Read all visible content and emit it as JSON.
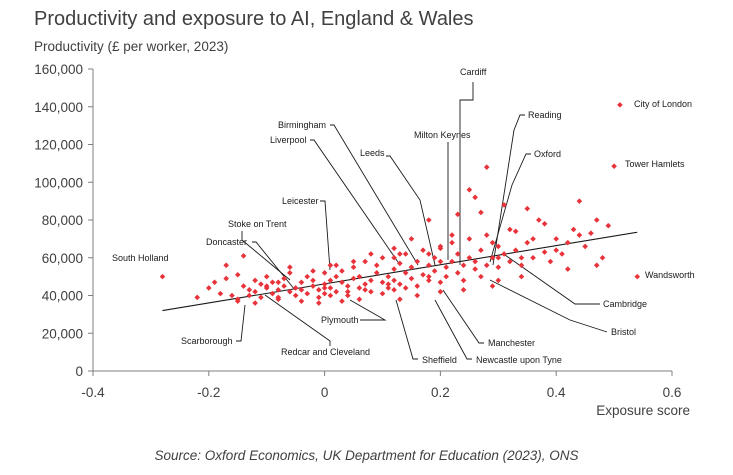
{
  "chart_data": {
    "type": "scatter",
    "title": "Productivity and exposure to AI, England & Wales",
    "ylabel": "Productivity (£ per worker, 2023)",
    "xlabel": "Exposure score",
    "source": "Source: Oxford Economics, UK Department for Education (2023), ONS",
    "xlim": [
      -0.4,
      0.6
    ],
    "ylim": [
      0,
      160000
    ],
    "x_ticks": [
      "-0.4",
      "-0.2",
      "0",
      "0.2",
      "0.4",
      "0.6"
    ],
    "y_ticks": [
      "0",
      "20,000",
      "40,000",
      "60,000",
      "80,000",
      "100,000",
      "120,000",
      "140,000",
      "160,000"
    ],
    "marker_color": "#e8333a",
    "trendline": {
      "x": [
        -0.28,
        0.54
      ],
      "y": [
        32000,
        73500
      ],
      "color": "#1a1a1a"
    },
    "labelled_points": [
      {
        "name": "City of London",
        "x": 0.51,
        "y": 141000
      },
      {
        "name": "Tower Hamlets",
        "x": 0.5,
        "y": 108500
      },
      {
        "name": "Wandsworth",
        "x": 0.54,
        "y": 50000
      },
      {
        "name": "South Holland",
        "x": -0.28,
        "y": 50000
      },
      {
        "name": "Cardiff",
        "x": 0.23,
        "y": 83000
      },
      {
        "name": "Reading",
        "x": 0.29,
        "y": 68000
      },
      {
        "name": "Oxford",
        "x": 0.3,
        "y": 60000
      },
      {
        "name": "Milton Keynes",
        "x": 0.2,
        "y": 66000
      },
      {
        "name": "Birmingham",
        "x": 0.13,
        "y": 62000
      },
      {
        "name": "Liverpool",
        "x": 0.12,
        "y": 60000
      },
      {
        "name": "Leeds",
        "x": 0.18,
        "y": 62000
      },
      {
        "name": "Leicester",
        "x": 0.01,
        "y": 56000
      },
      {
        "name": "Stoke on Trent",
        "x": -0.08,
        "y": 47000
      },
      {
        "name": "Doncaster",
        "x": -0.1,
        "y": 45000
      },
      {
        "name": "Scarborough",
        "x": -0.15,
        "y": 37000
      },
      {
        "name": "Redcar and Cleveland",
        "x": -0.12,
        "y": 36000
      },
      {
        "name": "Plymouth",
        "x": 0.01,
        "y": 40000
      },
      {
        "name": "Sheffield",
        "x": 0.12,
        "y": 43000
      },
      {
        "name": "Newcastle upon Tyne",
        "x": 0.18,
        "y": 50000
      },
      {
        "name": "Manchester",
        "x": 0.2,
        "y": 58000
      },
      {
        "name": "Cambridge",
        "x": 0.34,
        "y": 60000
      },
      {
        "name": "Bristol",
        "x": 0.3,
        "y": 48000
      }
    ],
    "points": [
      [
        -0.22,
        39000
      ],
      [
        -0.2,
        44000
      ],
      [
        -0.19,
        47000
      ],
      [
        -0.18,
        41000
      ],
      [
        -0.17,
        56000
      ],
      [
        -0.17,
        49000
      ],
      [
        -0.16,
        40000
      ],
      [
        -0.15,
        38000
      ],
      [
        -0.15,
        51000
      ],
      [
        -0.14,
        61000
      ],
      [
        -0.14,
        45000
      ],
      [
        -0.13,
        43000
      ],
      [
        -0.13,
        40000
      ],
      [
        -0.12,
        48000
      ],
      [
        -0.12,
        42000
      ],
      [
        -0.11,
        46000
      ],
      [
        -0.11,
        39000
      ],
      [
        -0.1,
        44000
      ],
      [
        -0.1,
        50000
      ],
      [
        -0.09,
        41000
      ],
      [
        -0.09,
        47000
      ],
      [
        -0.08,
        43000
      ],
      [
        -0.08,
        38000
      ],
      [
        -0.07,
        45000
      ],
      [
        -0.07,
        49000
      ],
      [
        -0.06,
        42000
      ],
      [
        -0.06,
        52000
      ],
      [
        -0.05,
        44000
      ],
      [
        -0.05,
        40000
      ],
      [
        -0.04,
        47000
      ],
      [
        -0.04,
        43000
      ],
      [
        -0.03,
        50000
      ],
      [
        -0.03,
        41000
      ],
      [
        -0.02,
        45000
      ],
      [
        -0.02,
        48000
      ],
      [
        -0.01,
        43000
      ],
      [
        -0.01,
        39000
      ],
      [
        0.0,
        46000
      ],
      [
        0.0,
        52000
      ],
      [
        0.0,
        41000
      ],
      [
        0.01,
        48000
      ],
      [
        0.01,
        44000
      ],
      [
        0.02,
        50000
      ],
      [
        0.02,
        42000
      ],
      [
        0.03,
        47000
      ],
      [
        0.03,
        53000
      ],
      [
        0.04,
        45000
      ],
      [
        0.04,
        40000
      ],
      [
        0.05,
        49000
      ],
      [
        0.05,
        55000
      ],
      [
        0.06,
        44000
      ],
      [
        0.06,
        50000
      ],
      [
        0.07,
        46000
      ],
      [
        0.07,
        58000
      ],
      [
        0.08,
        48000
      ],
      [
        0.08,
        42000
      ],
      [
        0.09,
        52000
      ],
      [
        0.09,
        56000
      ],
      [
        0.1,
        47000
      ],
      [
        0.1,
        60000
      ],
      [
        0.11,
        50000
      ],
      [
        0.11,
        44000
      ],
      [
        0.12,
        54000
      ],
      [
        0.12,
        48000
      ],
      [
        0.13,
        57000
      ],
      [
        0.13,
        46000
      ],
      [
        0.14,
        52000
      ],
      [
        0.14,
        62000
      ],
      [
        0.15,
        49000
      ],
      [
        0.15,
        55000
      ],
      [
        0.16,
        45000
      ],
      [
        0.16,
        58000
      ],
      [
        0.17,
        51000
      ],
      [
        0.17,
        64000
      ],
      [
        0.18,
        48000
      ],
      [
        0.18,
        56000
      ],
      [
        0.19,
        53000
      ],
      [
        0.19,
        60000
      ],
      [
        0.2,
        47000
      ],
      [
        0.2,
        65000
      ],
      [
        0.21,
        55000
      ],
      [
        0.21,
        50000
      ],
      [
        0.22,
        58000
      ],
      [
        0.22,
        68000
      ],
      [
        0.23,
        52000
      ],
      [
        0.23,
        62000
      ],
      [
        0.24,
        56000
      ],
      [
        0.24,
        48000
      ],
      [
        0.25,
        60000
      ],
      [
        0.25,
        70000
      ],
      [
        0.26,
        54000
      ],
      [
        0.26,
        58000
      ],
      [
        0.27,
        64000
      ],
      [
        0.27,
        50000
      ],
      [
        0.28,
        56000
      ],
      [
        0.28,
        72000
      ],
      [
        0.29,
        60000
      ],
      [
        0.3,
        66000
      ],
      [
        0.3,
        55000
      ],
      [
        0.31,
        62000
      ],
      [
        0.32,
        58000
      ],
      [
        0.32,
        75000
      ],
      [
        0.33,
        64000
      ],
      [
        0.34,
        56000
      ],
      [
        0.35,
        68000
      ],
      [
        0.36,
        60000
      ],
      [
        0.37,
        80000
      ],
      [
        0.38,
        63000
      ],
      [
        0.39,
        58000
      ],
      [
        0.4,
        70000
      ],
      [
        0.41,
        62000
      ],
      [
        0.42,
        54000
      ],
      [
        0.43,
        75000
      ],
      [
        0.44,
        90000
      ],
      [
        0.45,
        66000
      ],
      [
        0.46,
        73000
      ],
      [
        0.47,
        80000
      ],
      [
        0.48,
        60000
      ],
      [
        0.49,
        77000
      ],
      [
        0.26,
        92000
      ],
      [
        0.27,
        84000
      ],
      [
        0.28,
        108000
      ],
      [
        0.25,
        96000
      ],
      [
        0.31,
        88000
      ],
      [
        0.33,
        74000
      ],
      [
        0.35,
        86000
      ],
      [
        0.38,
        78000
      ],
      [
        0.22,
        72000
      ],
      [
        0.18,
        80000
      ],
      [
        0.15,
        70000
      ],
      [
        0.12,
        65000
      ],
      [
        0.08,
        62000
      ],
      [
        0.05,
        58000
      ],
      [
        0.02,
        56000
      ],
      [
        -0.02,
        53000
      ],
      [
        -0.06,
        55000
      ],
      [
        0.36,
        70000
      ],
      [
        0.4,
        64000
      ],
      [
        0.42,
        68000
      ],
      [
        0.44,
        72000
      ],
      [
        0.47,
        56000
      ],
      [
        0.34,
        50000
      ],
      [
        0.29,
        45000
      ],
      [
        0.24,
        43000
      ],
      [
        0.2,
        42000
      ],
      [
        0.16,
        40000
      ],
      [
        0.13,
        38000
      ],
      [
        0.1,
        41000
      ],
      [
        0.06,
        38000
      ],
      [
        0.03,
        37000
      ],
      [
        -0.01,
        36000
      ],
      [
        -0.04,
        37000
      ],
      [
        -0.08,
        39000
      ],
      [
        0.14,
        44000
      ],
      [
        0.11,
        46000
      ],
      [
        0.07,
        43000
      ],
      [
        0.04,
        42000
      ],
      [
        0.0,
        44000
      ]
    ]
  }
}
